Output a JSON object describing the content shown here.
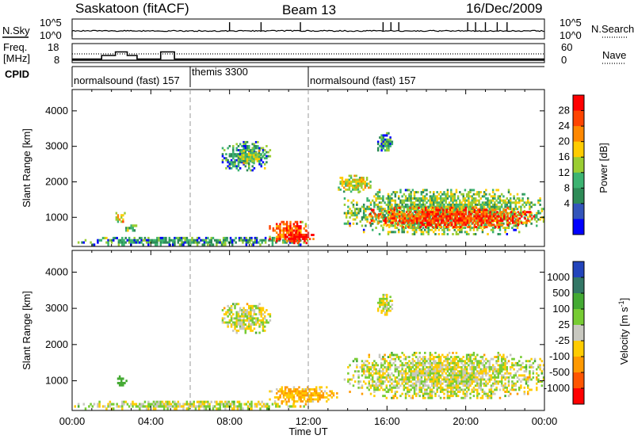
{
  "header": {
    "station": "Saskatoon (fitACF)",
    "beam": "Beam 13",
    "date": "16/Dec/2009"
  },
  "top_panels": {
    "nsky_label": "N.Sky",
    "nsearch_label": "N.Search",
    "nsky_ticks": [
      "10^5",
      "10^0"
    ],
    "nsky_right_ticks": [
      "10^5",
      "10^0"
    ],
    "freq_label_1": "Freq.",
    "freq_label_2": "[MHz]",
    "freq_ticks": [
      "18",
      "8"
    ],
    "nave_label": "Nave",
    "nave_ticks": [
      "60",
      "0"
    ],
    "cpid_label": "CPID",
    "cpid_segments": [
      {
        "name": "normalsound (fast) 157",
        "start_hr": 0,
        "end_hr": 6
      },
      {
        "name": "themis 3300",
        "start_hr": 6,
        "end_hr": 12
      },
      {
        "name": "normalsound (fast) 157",
        "start_hr": 12,
        "end_hr": 24
      }
    ]
  },
  "axes": {
    "ylabel": "Slant Range [km]",
    "xlabel": "Time UT",
    "x_tick_labels": [
      "00:00",
      "04:00",
      "08:00",
      "12:00",
      "16:00",
      "20:00",
      "00:00"
    ],
    "y_tick_labels": [
      "1000",
      "2000",
      "3000",
      "4000"
    ]
  },
  "power_colorbar": {
    "label": "Power [dB]",
    "ticks": [
      "28",
      "24",
      "20",
      "16",
      "12",
      "8",
      "4"
    ],
    "colors": [
      "#ff0000",
      "#ff4400",
      "#ff8800",
      "#ffcc00",
      "#9acd32",
      "#3cb371",
      "#2e8b57",
      "#3355bb",
      "#0000ff"
    ]
  },
  "velocity_colorbar": {
    "label_main": "Velocity  [m s",
    "label_sup": "-1",
    "label_end": "]",
    "ticks": [
      "1000",
      "500",
      "100",
      "25",
      "-25",
      "-100",
      "-500",
      "-1000"
    ],
    "colors": [
      "#2244bb",
      "#337766",
      "#44aa33",
      "#77cc33",
      "#c8c8c0",
      "#ffcc00",
      "#ff9900",
      "#ff5500",
      "#ff0000"
    ]
  },
  "chart_data": {
    "type": "heatmap",
    "title": "Saskatoon (fitACF)",
    "subtitle": "Beam 13  16/Dec/2009",
    "x_unit": "hours UT",
    "xlim": [
      0,
      24
    ],
    "ylim": [
      180,
      4600
    ],
    "xlabel": "Time UT",
    "ylabel": "Slant Range [km]",
    "cpid_boundaries_hr": [
      6,
      12
    ],
    "frequency_mhz": [
      {
        "start_hr": 0,
        "end_hr": 1.5,
        "value": 10.5
      },
      {
        "start_hr": 1.5,
        "end_hr": 2.2,
        "value": 13
      },
      {
        "start_hr": 2.2,
        "end_hr": 2.8,
        "value": 15.5
      },
      {
        "start_hr": 2.8,
        "end_hr": 3.3,
        "value": 13
      },
      {
        "start_hr": 3.3,
        "end_hr": 4.5,
        "value": 10.5
      },
      {
        "start_hr": 4.5,
        "end_hr": 5.2,
        "value": 15.5
      },
      {
        "start_hr": 5.2,
        "end_hr": 24,
        "value": 10.5
      }
    ],
    "power_db_regions": [
      {
        "t0": 0.1,
        "t1": 12,
        "r0": 200,
        "r1": 450,
        "power": 8
      },
      {
        "t0": 2.2,
        "t1": 2.8,
        "r0": 850,
        "r1": 1150,
        "power": 18
      },
      {
        "t0": 2.7,
        "t1": 3.3,
        "r0": 600,
        "r1": 800,
        "power": 10
      },
      {
        "t0": 7.6,
        "t1": 10.1,
        "r0": 2300,
        "r1": 3150,
        "power": 8
      },
      {
        "t0": 8.5,
        "t1": 9.8,
        "r0": 2500,
        "r1": 2900,
        "power": 14
      },
      {
        "t0": 10,
        "t1": 12,
        "r0": 300,
        "r1": 900,
        "power": 24
      },
      {
        "t0": 10.8,
        "t1": 12.3,
        "r0": 250,
        "r1": 650,
        "power": 30
      },
      {
        "t0": 13.8,
        "t1": 24,
        "r0": 500,
        "r1": 1800,
        "power": 12
      },
      {
        "t0": 15,
        "t1": 23.5,
        "r0": 700,
        "r1": 1300,
        "power": 26
      },
      {
        "t0": 13.5,
        "t1": 15.2,
        "r0": 1700,
        "r1": 2200,
        "power": 16
      },
      {
        "t0": 15.5,
        "t1": 16.3,
        "r0": 2800,
        "r1": 3400,
        "power": 8
      }
    ],
    "velocity_ms_regions": [
      {
        "t0": 0.1,
        "t1": 12,
        "r0": 200,
        "r1": 450,
        "velocity": 0
      },
      {
        "t0": 2.2,
        "t1": 2.8,
        "r0": 850,
        "r1": 1150,
        "velocity": 300
      },
      {
        "t0": 7.6,
        "t1": 10.1,
        "r0": 2300,
        "r1": 3150,
        "velocity": 0
      },
      {
        "t0": 10,
        "t1": 13.5,
        "r0": 350,
        "r1": 850,
        "velocity": -100
      },
      {
        "t0": 13.8,
        "t1": 24,
        "r0": 500,
        "r1": 1800,
        "velocity": 0
      },
      {
        "t0": 15.5,
        "t1": 16.3,
        "r0": 2800,
        "r1": 3400,
        "velocity": 0
      }
    ]
  }
}
